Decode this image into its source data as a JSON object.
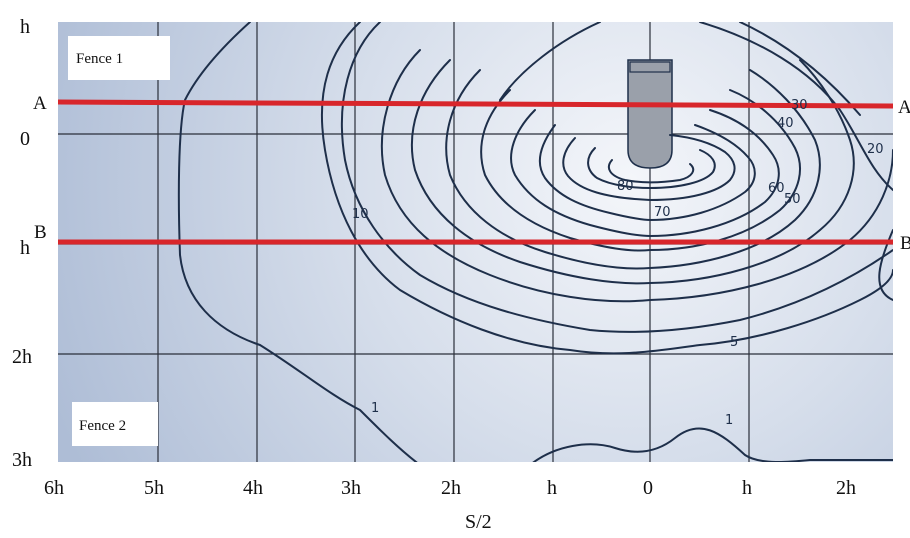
{
  "axes": {
    "x_ticks": [
      "6h",
      "5h",
      "4h",
      "3h",
      "2h",
      "h",
      "0",
      "h",
      "2h"
    ],
    "y_ticks": [
      "h",
      "0",
      "h",
      "2h",
      "3h"
    ],
    "x_title": "S/2"
  },
  "fences": {
    "fence1": "Fence 1",
    "fence2": "Fence 2"
  },
  "sections": {
    "a_left": "A",
    "a_right": "A",
    "b_left": "B",
    "b_right": "B"
  },
  "contour_labels": [
    "80",
    "70",
    "60",
    "50",
    "40",
    "30",
    "20",
    "10",
    "5",
    "1",
    "1"
  ],
  "colors": {
    "section_line": "#d8262b",
    "contour": "#1e2f4a",
    "background_center": "#f4f6fa",
    "background_edge": "#b3c1d9"
  }
}
